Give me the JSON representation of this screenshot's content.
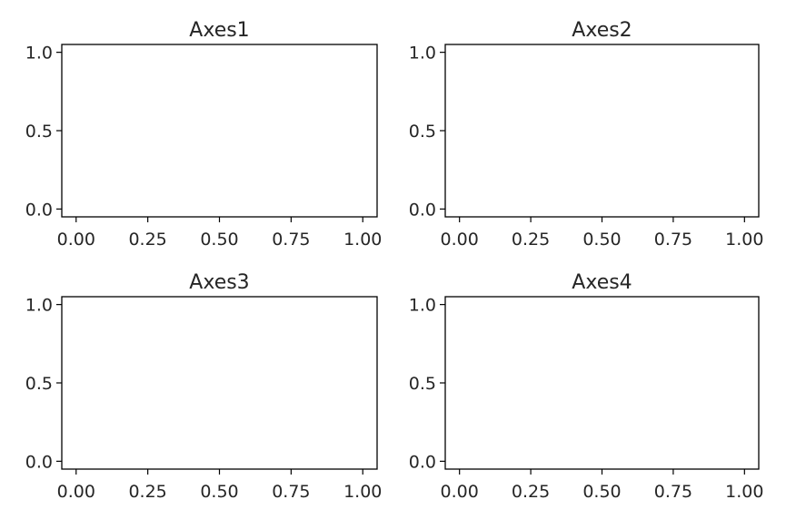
{
  "chart_data": [
    {
      "type": "scatter",
      "title": "Axes1",
      "xlabel": "",
      "ylabel": "",
      "xlim": [
        -0.05,
        1.05
      ],
      "ylim": [
        -0.05,
        1.05
      ],
      "xticks": [
        0.0,
        0.25,
        0.5,
        0.75,
        1.0
      ],
      "xtick_labels": [
        "0.00",
        "0.25",
        "0.50",
        "0.75",
        "1.00"
      ],
      "yticks": [
        0.0,
        0.5,
        1.0
      ],
      "ytick_labels": [
        "0.0",
        "0.5",
        "1.0"
      ],
      "series": [],
      "grid": false
    },
    {
      "type": "scatter",
      "title": "Axes2",
      "xlabel": "",
      "ylabel": "",
      "xlim": [
        -0.05,
        1.05
      ],
      "ylim": [
        -0.05,
        1.05
      ],
      "xticks": [
        0.0,
        0.25,
        0.5,
        0.75,
        1.0
      ],
      "xtick_labels": [
        "0.00",
        "0.25",
        "0.50",
        "0.75",
        "1.00"
      ],
      "yticks": [
        0.0,
        0.5,
        1.0
      ],
      "ytick_labels": [
        "0.0",
        "0.5",
        "1.0"
      ],
      "series": [],
      "grid": false
    },
    {
      "type": "scatter",
      "title": "Axes3",
      "xlabel": "",
      "ylabel": "",
      "xlim": [
        -0.05,
        1.05
      ],
      "ylim": [
        -0.05,
        1.05
      ],
      "xticks": [
        0.0,
        0.25,
        0.5,
        0.75,
        1.0
      ],
      "xtick_labels": [
        "0.00",
        "0.25",
        "0.50",
        "0.75",
        "1.00"
      ],
      "yticks": [
        0.0,
        0.5,
        1.0
      ],
      "ytick_labels": [
        "0.0",
        "0.5",
        "1.0"
      ],
      "series": [],
      "grid": false
    },
    {
      "type": "scatter",
      "title": "Axes4",
      "xlabel": "",
      "ylabel": "",
      "xlim": [
        -0.05,
        1.05
      ],
      "ylim": [
        -0.05,
        1.05
      ],
      "xticks": [
        0.0,
        0.25,
        0.5,
        0.75,
        1.0
      ],
      "xtick_labels": [
        "0.00",
        "0.25",
        "0.50",
        "0.75",
        "1.00"
      ],
      "yticks": [
        0.0,
        0.5,
        1.0
      ],
      "ytick_labels": [
        "0.0",
        "0.5",
        "1.0"
      ],
      "series": [],
      "grid": false
    }
  ]
}
